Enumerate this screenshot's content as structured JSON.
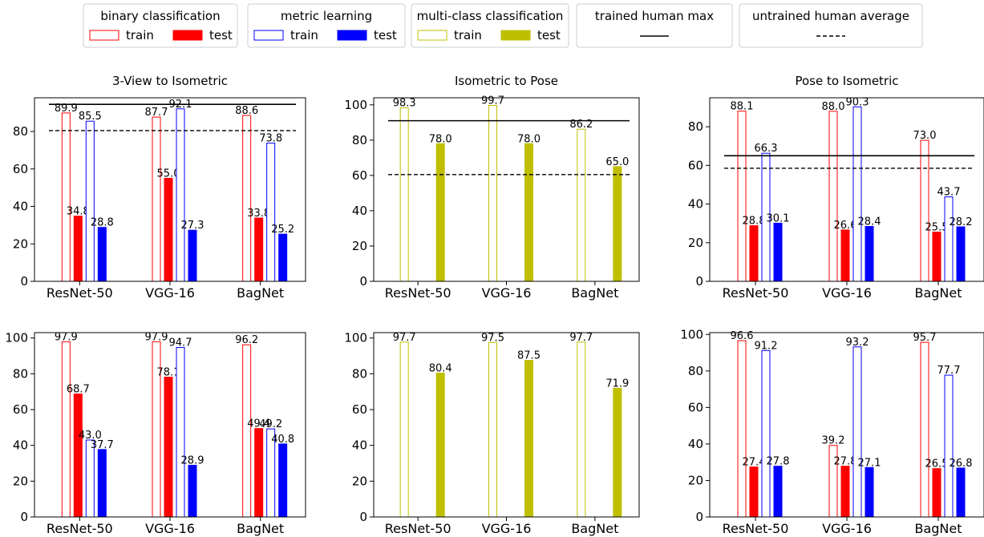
{
  "legend": {
    "groups": [
      {
        "title": "binary classification",
        "items": [
          {
            "label": "train",
            "style": "outline",
            "color": "#ff0000"
          },
          {
            "label": "test",
            "style": "fill",
            "color": "#ff0000"
          }
        ]
      },
      {
        "title": "metric learning",
        "items": [
          {
            "label": "train",
            "style": "outline",
            "color": "#0000ff"
          },
          {
            "label": "test",
            "style": "fill",
            "color": "#0000ff"
          }
        ]
      },
      {
        "title": "multi-class classification",
        "items": [
          {
            "label": "train",
            "style": "outline",
            "color": "#bfbf00"
          },
          {
            "label": "test",
            "style": "fill",
            "color": "#bfbf00"
          }
        ]
      },
      {
        "title": "trained human max",
        "items": [
          {
            "label": "",
            "style": "solid-line",
            "color": "#000000"
          }
        ]
      },
      {
        "title": "untrained human average",
        "items": [
          {
            "label": "",
            "style": "dashed-line",
            "color": "#000000"
          }
        ]
      }
    ]
  },
  "chart_data": [
    {
      "type": "bar",
      "title": "3-View to Isometric",
      "categories": [
        "ResNet-50",
        "VGG-16",
        "BagNet"
      ],
      "ylim": [
        0,
        98
      ],
      "yticks": [
        0,
        20,
        40,
        60,
        80
      ],
      "series": [
        {
          "name": "binary classification train",
          "color": "#ff0000",
          "style": "outline",
          "slot": 0,
          "values": [
            89.9,
            87.7,
            88.6
          ]
        },
        {
          "name": "binary classification test",
          "color": "#ff0000",
          "style": "fill",
          "slot": 1,
          "values": [
            34.8,
            55.0,
            33.8
          ]
        },
        {
          "name": "metric learning train",
          "color": "#0000ff",
          "style": "outline",
          "slot": 2,
          "values": [
            85.5,
            92.1,
            73.8
          ]
        },
        {
          "name": "metric learning test",
          "color": "#0000ff",
          "style": "fill",
          "slot": 3,
          "values": [
            28.8,
            27.3,
            25.2
          ]
        }
      ],
      "trained_human_max": 94.5,
      "untrained_human_average": 80.5
    },
    {
      "type": "bar",
      "title": "Isometric to Pose",
      "categories": [
        "ResNet-50",
        "VGG-16",
        "BagNet"
      ],
      "ylim": [
        0,
        104
      ],
      "yticks": [
        0,
        20,
        40,
        60,
        80,
        100
      ],
      "series": [
        {
          "name": "multi-class classification train",
          "color": "#bfbf00",
          "style": "outline",
          "slot": 0,
          "values": [
            98.3,
            99.7,
            86.2
          ]
        },
        {
          "name": "multi-class classification test",
          "color": "#bfbf00",
          "style": "fill",
          "slot": 3,
          "values": [
            78.0,
            78.0,
            65.0
          ]
        }
      ],
      "trained_human_max": 91.0,
      "untrained_human_average": 60.5
    },
    {
      "type": "bar",
      "title": "Pose to Isometric",
      "categories": [
        "ResNet-50",
        "VGG-16",
        "BagNet"
      ],
      "ylim": [
        0,
        95
      ],
      "yticks": [
        0,
        20,
        40,
        60,
        80
      ],
      "series": [
        {
          "name": "binary classification train",
          "color": "#ff0000",
          "style": "outline",
          "slot": 0,
          "values": [
            88.1,
            88.0,
            73.0
          ]
        },
        {
          "name": "binary classification test",
          "color": "#ff0000",
          "style": "fill",
          "slot": 1,
          "values": [
            28.8,
            26.6,
            25.5
          ]
        },
        {
          "name": "metric learning train",
          "color": "#0000ff",
          "style": "outline",
          "slot": 2,
          "values": [
            66.3,
            90.3,
            43.7
          ]
        },
        {
          "name": "metric learning test",
          "color": "#0000ff",
          "style": "fill",
          "slot": 3,
          "values": [
            30.1,
            28.4,
            28.2
          ]
        }
      ],
      "trained_human_max": 65.0,
      "untrained_human_average": 58.5
    },
    {
      "type": "bar",
      "title": "",
      "categories": [
        "ResNet-50",
        "VGG-16",
        "BagNet"
      ],
      "ylim": [
        0,
        103
      ],
      "yticks": [
        0,
        20,
        40,
        60,
        80,
        100
      ],
      "series": [
        {
          "name": "binary classification train",
          "color": "#ff0000",
          "style": "outline",
          "slot": 0,
          "values": [
            97.9,
            97.9,
            96.2
          ]
        },
        {
          "name": "binary classification test",
          "color": "#ff0000",
          "style": "fill",
          "slot": 1,
          "values": [
            68.7,
            78.1,
            49.4
          ]
        },
        {
          "name": "metric learning train",
          "color": "#0000ff",
          "style": "outline",
          "slot": 2,
          "values": [
            43.0,
            94.7,
            49.2
          ]
        },
        {
          "name": "metric learning test",
          "color": "#0000ff",
          "style": "fill",
          "slot": 3,
          "values": [
            37.7,
            28.9,
            40.8
          ]
        }
      ]
    },
    {
      "type": "bar",
      "title": "",
      "categories": [
        "ResNet-50",
        "VGG-16",
        "BagNet"
      ],
      "ylim": [
        0,
        103
      ],
      "yticks": [
        0,
        20,
        40,
        60,
        80,
        100
      ],
      "series": [
        {
          "name": "multi-class classification train",
          "color": "#bfbf00",
          "style": "outline",
          "slot": 0,
          "values": [
            97.7,
            97.5,
            97.7
          ]
        },
        {
          "name": "multi-class classification test",
          "color": "#bfbf00",
          "style": "fill",
          "slot": 3,
          "values": [
            80.4,
            87.5,
            71.9
          ]
        }
      ]
    },
    {
      "type": "bar",
      "title": "",
      "categories": [
        "ResNet-50",
        "VGG-16",
        "BagNet"
      ],
      "ylim": [
        0,
        101
      ],
      "yticks": [
        0,
        20,
        40,
        60,
        80,
        100
      ],
      "series": [
        {
          "name": "binary classification train",
          "color": "#ff0000",
          "style": "outline",
          "slot": 0,
          "values": [
            96.6,
            39.2,
            95.7
          ]
        },
        {
          "name": "binary classification test",
          "color": "#ff0000",
          "style": "fill",
          "slot": 1,
          "values": [
            27.4,
            27.8,
            26.5
          ]
        },
        {
          "name": "metric learning train",
          "color": "#0000ff",
          "style": "outline",
          "slot": 2,
          "values": [
            91.2,
            93.2,
            77.7
          ]
        },
        {
          "name": "metric learning test",
          "color": "#0000ff",
          "style": "fill",
          "slot": 3,
          "values": [
            27.8,
            27.1,
            26.8
          ]
        }
      ]
    }
  ]
}
